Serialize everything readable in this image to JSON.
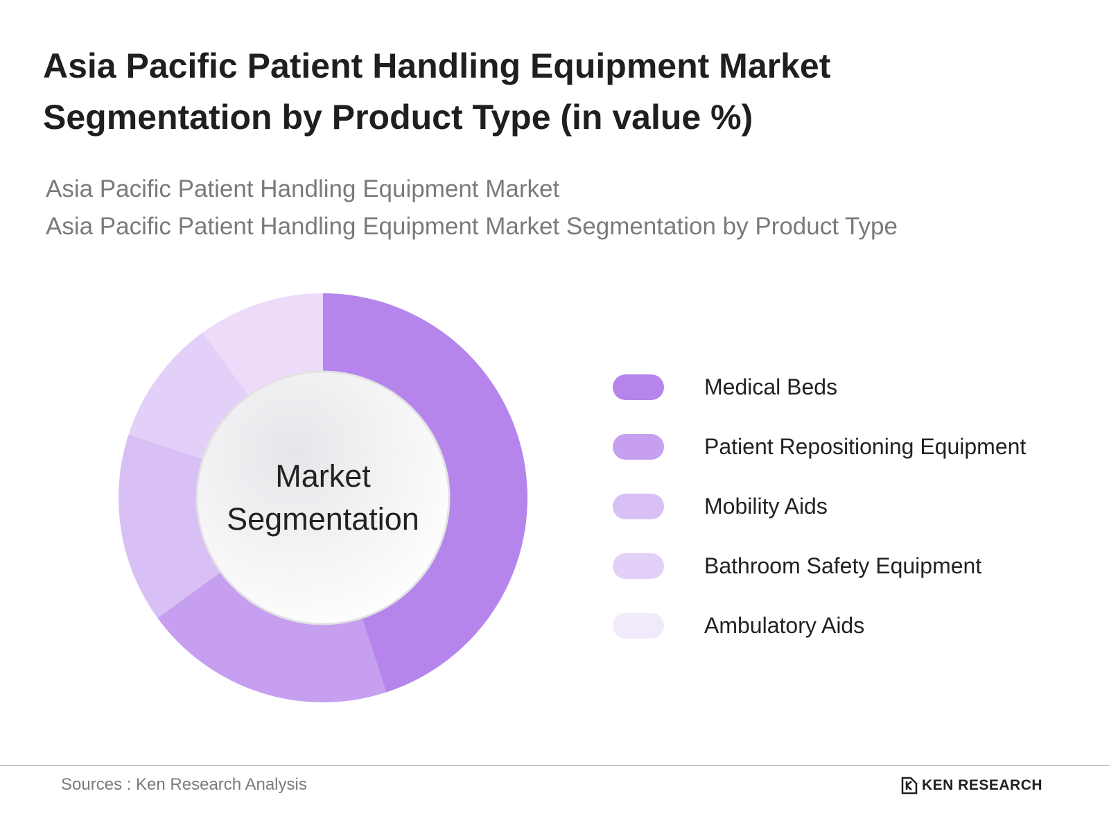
{
  "header": {
    "title": "Asia Pacific Patient Handling Equipment Market Segmentation by Product Type (in value %)",
    "subtitle_1": "Asia Pacific Patient Handling Equipment Market",
    "subtitle_2": "Asia Pacific Patient Handling Equipment Market Segmentation by Product Type"
  },
  "chart_data": {
    "type": "pie",
    "variant": "donut",
    "center_label_line_1": "Market",
    "center_label_line_2": "Segmentation",
    "categories": [
      "Medical Beds",
      "Patient Repositioning Equipment",
      "Mobility Aids",
      "Bathroom Safety Equipment",
      "Ambulatory Aids"
    ],
    "values": [
      45,
      20,
      15,
      10,
      10
    ],
    "colors": [
      "#b585ec",
      "#c69ff0",
      "#d8bff5",
      "#e3d0f8",
      "#ecdcfa"
    ],
    "legend_colors": [
      "#b585ec",
      "#c69ff0",
      "#d8bff5",
      "#e3d0f8",
      "#f1eafb"
    ],
    "legend_position": "right"
  },
  "footer": {
    "source": "Sources : Ken Research Analysis",
    "brand": "KEN RESEARCH"
  }
}
